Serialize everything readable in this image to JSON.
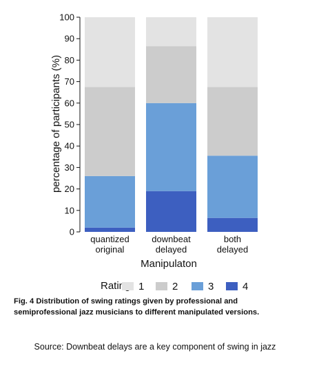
{
  "chart_data": {
    "type": "bar",
    "stacked": true,
    "categories": [
      [
        "quantized",
        "original"
      ],
      [
        "downbeat",
        "delayed"
      ],
      [
        "both",
        "delayed"
      ]
    ],
    "series": [
      {
        "name": "4",
        "color": "#3d5fc0",
        "values": [
          2,
          19,
          6.5
        ]
      },
      {
        "name": "3",
        "color": "#6a9fd8",
        "values": [
          24,
          41,
          29
        ]
      },
      {
        "name": "2",
        "color": "#cccccc",
        "values": [
          41.5,
          26.5,
          32
        ]
      },
      {
        "name": "1",
        "color": "#e3e3e3",
        "values": [
          32.5,
          13.5,
          32.5
        ]
      }
    ],
    "xlabel": "Manipulaton",
    "ylabel": "percentage of participants (%)",
    "ylim": [
      0,
      100
    ],
    "yticks": [
      0,
      10,
      20,
      30,
      40,
      50,
      60,
      70,
      80,
      90,
      100
    ],
    "legend": {
      "title": "Rating",
      "placement": "bottom",
      "items": [
        "1",
        "2",
        "3",
        "4"
      ]
    },
    "grid": false
  },
  "caption": "Fig. 4 Distribution of swing ratings given by professional and semiprofessional jazz musicians to different manipulated versions.",
  "source": "Source: Downbeat delays are a key component of swing in jazz"
}
